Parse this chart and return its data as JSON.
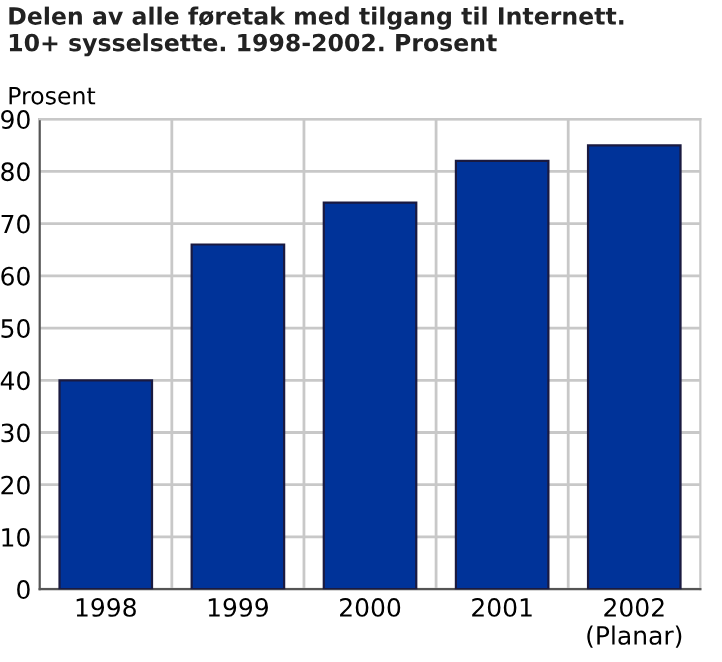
{
  "chart_data": {
    "type": "bar",
    "title": "Delen av alle føretak med tilgang til Internett.\n10+ sysselsette. 1998-2002. Prosent",
    "ylabel": "Prosent",
    "categories": [
      "1998",
      "1999",
      "2000",
      "2001",
      "2002\n(Planar)"
    ],
    "values": [
      40,
      66,
      74,
      82,
      85
    ],
    "color": "#003399",
    "ylim": [
      0,
      90
    ],
    "yticks": [
      0,
      10,
      20,
      30,
      40,
      50,
      60,
      70,
      80,
      90
    ],
    "grid": true,
    "legend": false
  }
}
